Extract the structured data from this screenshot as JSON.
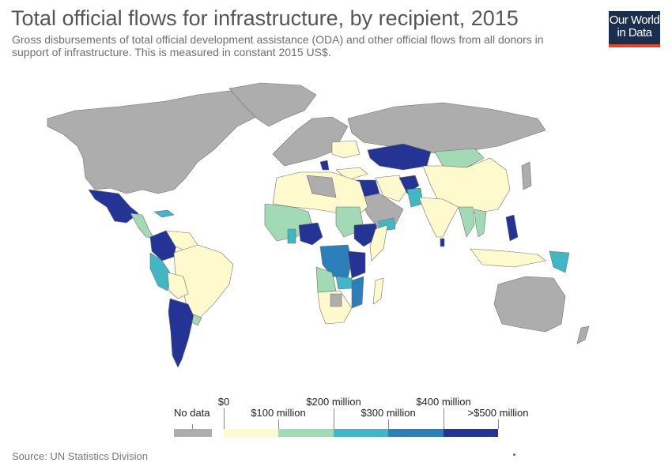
{
  "header": {
    "title": "Total official flows for infrastructure, by recipient, 2015",
    "subtitle": "Gross disbursements of total official development assistance (ODA) and other official flows from all donors in support of infrastructure. This is measured in constant 2015 US$."
  },
  "logo": {
    "line1": "Our World",
    "line2": "in Data"
  },
  "legend": {
    "no_data_label": "No data",
    "no_data_color": "#adadad",
    "top_labels": [
      "$0",
      "$200 million",
      "$400 million"
    ],
    "bottom_labels": [
      "$100 million",
      "$300 million",
      ">$500 million"
    ],
    "bins": [
      {
        "range": "$0 – $100 million",
        "color": "#fffacd"
      },
      {
        "range": "$100 – $200 million",
        "color": "#a1dab4"
      },
      {
        "range": "$200 – $300 million",
        "color": "#41b6c4"
      },
      {
        "range": "$300 – $400 million",
        "color": "#2c7fb8"
      },
      {
        "range": "$400 – >$500 million",
        "color": "#253494"
      }
    ]
  },
  "footer": {
    "source": "Source: UN Statistics Division"
  },
  "map_fills": {
    "no_data": "#adadad",
    "bin1": "#fffacd",
    "bin2": "#a1dab4",
    "bin3": "#41b6c4",
    "bin4": "#2c7fb8",
    "bin5": "#253494"
  }
}
